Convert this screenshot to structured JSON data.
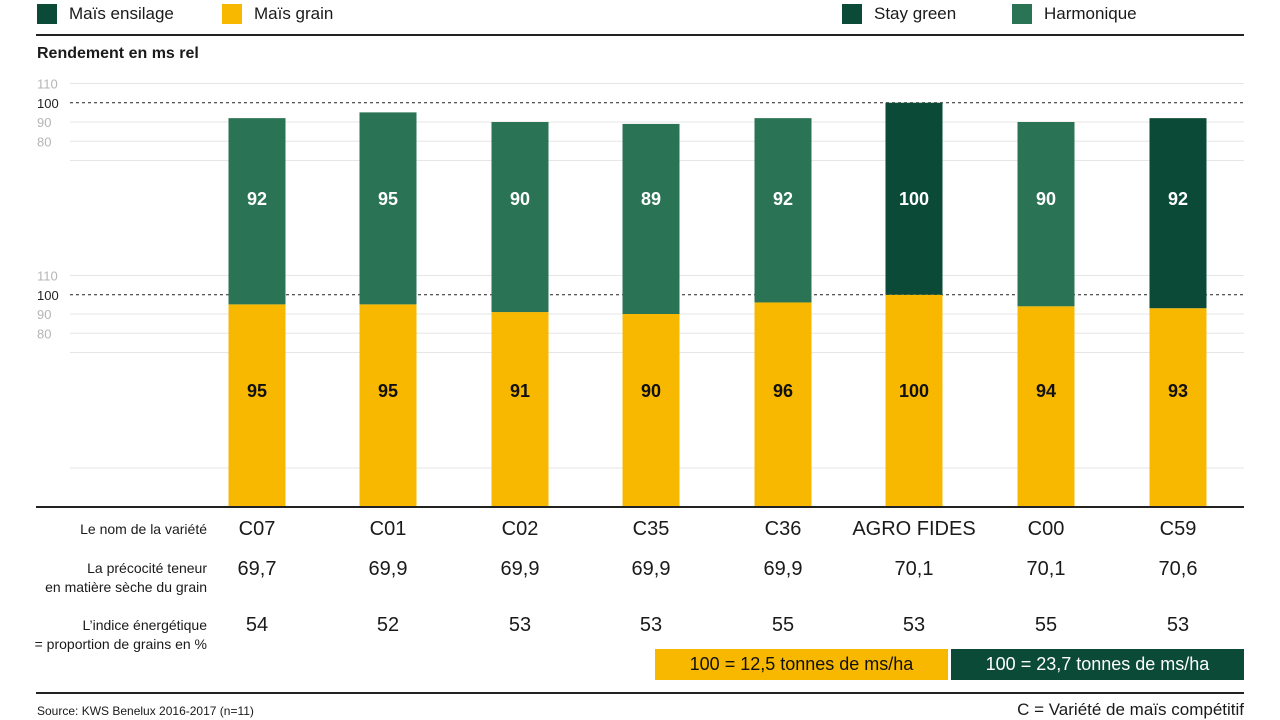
{
  "legend": [
    {
      "label": "Maïs ensilage",
      "color": "#0a4a36"
    },
    {
      "label": "Maïs grain",
      "color": "#f8b800"
    },
    {
      "label": "Stay green",
      "color": "#0a4a36"
    },
    {
      "label": "Harmonique",
      "color": "#2a7355"
    }
  ],
  "colors": {
    "harmonique": "#2a7355",
    "stay_green": "#0a4a36",
    "grain": "#f8b800",
    "grid": "#e6e6e6",
    "tick": "#b5b5b5"
  },
  "chart_data": [
    {
      "type": "bar",
      "title": "Maïs ensilage",
      "ylabel": "Rendement en ms rel",
      "ylim": [
        70,
        110
      ],
      "yticks": [
        "80",
        "90",
        "100",
        "110"
      ],
      "reference_line": 100,
      "categories": [
        "C07",
        "C01",
        "C02",
        "C35",
        "C36",
        "AGRO FIDES",
        "C00",
        "C59"
      ],
      "values": [
        92,
        95,
        90,
        89,
        92,
        100,
        90,
        92
      ],
      "labels": [
        "92",
        "95",
        "90",
        "89",
        "92",
        "100",
        "90",
        "92"
      ],
      "series_by_bar": [
        "Harmonique",
        "Harmonique",
        "Harmonique",
        "Harmonique",
        "Harmonique",
        "Stay green",
        "Harmonique",
        "Stay green"
      ]
    },
    {
      "type": "bar",
      "title": "Maïs grain",
      "ylabel": "Rendement en ms rel",
      "ylim": [
        70,
        110
      ],
      "yticks": [
        "80",
        "90",
        "100",
        "110"
      ],
      "reference_line": 100,
      "categories": [
        "C07",
        "C01",
        "C02",
        "C35",
        "C36",
        "AGRO FIDES",
        "C00",
        "C59"
      ],
      "values": [
        95,
        95,
        91,
        90,
        96,
        100,
        94,
        93
      ],
      "labels": [
        "95",
        "95",
        "91",
        "90",
        "96",
        "100",
        "94",
        "93"
      ]
    }
  ],
  "y_axis_title": "Rendement en ms rel",
  "table": {
    "rows": [
      {
        "label": [
          "Le nom de la variété"
        ],
        "values": [
          "C07",
          "C01",
          "C02",
          "C35",
          "C36",
          "AGRO FIDES",
          "C00",
          "C59"
        ]
      },
      {
        "label": [
          "La précocité teneur",
          "en matière sèche du grain"
        ],
        "values": [
          "69,7",
          "69,9",
          "69,9",
          "69,9",
          "69,9",
          "70,1",
          "70,1",
          "70,6"
        ]
      },
      {
        "label": [
          "L’indice énergétique",
          "= proportion de grains en %"
        ],
        "values": [
          "54",
          "52",
          "53",
          "53",
          "55",
          "53",
          "55",
          "53"
        ]
      }
    ]
  },
  "unit_boxes": [
    {
      "text": "100 = 12,5 tonnes de ms/ha",
      "color": "#f8b800"
    },
    {
      "text": "100 = 23,7 tonnes de ms/ha",
      "color": "#0a4a36"
    }
  ],
  "footer": {
    "source": "Source: KWS Benelux 2016-2017 (n=11)",
    "note": "C = Variété de maïs compétitif"
  }
}
